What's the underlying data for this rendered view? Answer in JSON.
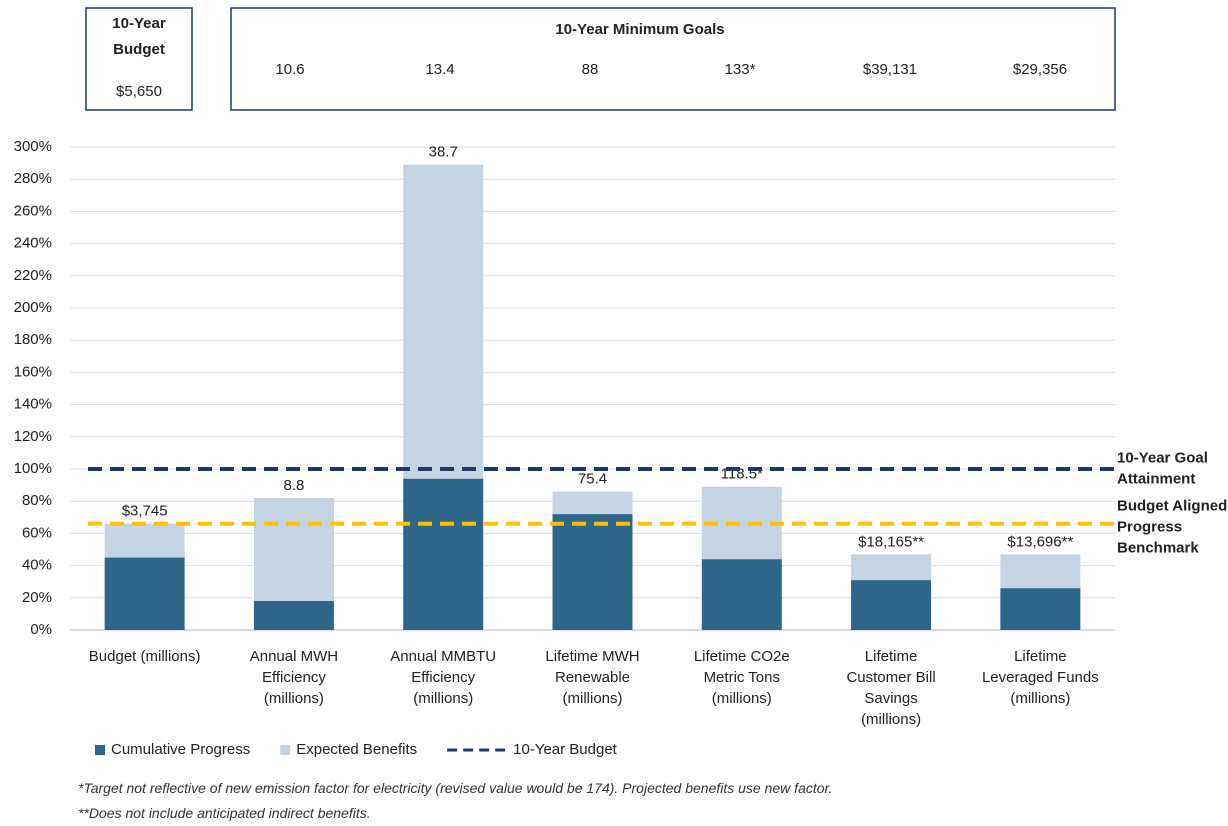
{
  "chart_data": {
    "type": "stacked_bar",
    "header": {
      "budget_title": "10-Year\nBudget",
      "budget_value": "$5,650",
      "goals_title": "10-Year Minimum Goals",
      "goals": [
        "10.6",
        "13.4",
        "88",
        "133*",
        "$39,131",
        "$29,356"
      ]
    },
    "categories": [
      "Budget (millions)",
      "Annual MWH\nEfficiency\n(millions)",
      "Annual MMBTU\nEfficiency\n(millions)",
      "Lifetime MWH\nRenewable\n(millions)",
      "Lifetime CO2e\nMetric Tons\n(millions)",
      "Lifetime\nCustomer Bill\nSavings\n(millions)",
      "Lifetime\nLeveraged Funds\n(millions)"
    ],
    "series": [
      {
        "name": "Cumulative Progress",
        "color": "#2e6689",
        "values": [
          45,
          18,
          94,
          72,
          44,
          31,
          26
        ]
      },
      {
        "name": "Expected Benefits",
        "color": "#c5d4e2",
        "values": [
          21,
          64,
          195,
          14,
          45,
          16,
          21
        ]
      }
    ],
    "bar_labels": [
      "$3,745",
      "8.8",
      "38.7",
      "75.4",
      "118.5*",
      "$18,165**",
      "$13,696**"
    ],
    "lines": [
      {
        "name": "10-Year Budget",
        "value": 100,
        "color": "#1f3864",
        "annotation": "10-Year  Goal\nAttainment"
      },
      {
        "value": 66,
        "color": "#ffc000",
        "annotation": "Budget Aligned\nProgress\nBenchmark"
      }
    ],
    "ylim": [
      0,
      300
    ],
    "yticks": [
      {
        "value": 0,
        "label": "0%"
      },
      {
        "value": 20,
        "label": "20%"
      },
      {
        "value": 40,
        "label": "40%"
      },
      {
        "value": 60,
        "label": "60%"
      },
      {
        "value": 80,
        "label": "80%"
      },
      {
        "value": 100,
        "label": "100%"
      },
      {
        "value": 120,
        "label": "120%"
      },
      {
        "value": 140,
        "label": "140%"
      },
      {
        "value": 160,
        "label": "160%"
      },
      {
        "value": 180,
        "label": "180%"
      },
      {
        "value": 200,
        "label": "200%"
      },
      {
        "value": 220,
        "label": "220%"
      },
      {
        "value": 240,
        "label": "240%"
      },
      {
        "value": 260,
        "label": "260%"
      },
      {
        "value": 280,
        "label": "280%"
      },
      {
        "value": 300,
        "label": "300%"
      }
    ],
    "grid": true,
    "footnotes": [
      "*Target not reflective of new emission factor for electricity (revised value would be 174). Projected benefits use new factor.",
      "**Does not include anticipated indirect benefits."
    ]
  }
}
